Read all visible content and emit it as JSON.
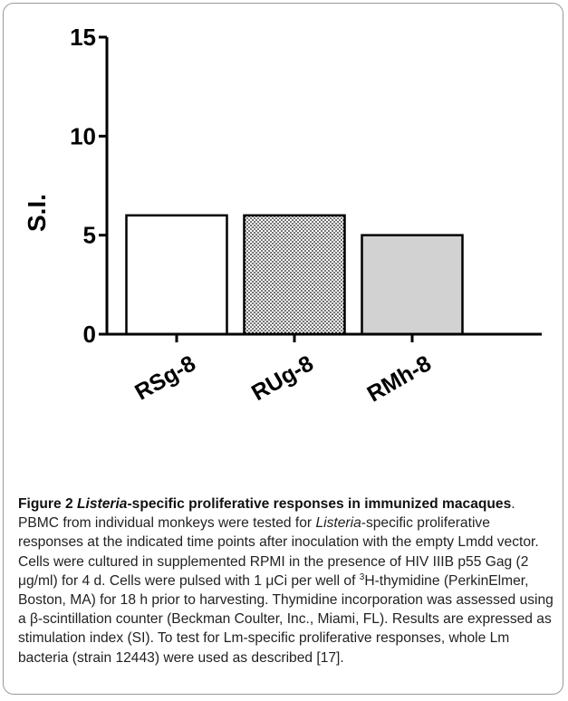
{
  "chart_data": {
    "type": "bar",
    "categories": [
      "RSg-8",
      "RUg-8",
      "RMh-8"
    ],
    "values": [
      6,
      6,
      5
    ],
    "ylabel": "S.I.",
    "ylim": [
      0,
      15
    ],
    "yticks": [
      0,
      5,
      10,
      15
    ],
    "grid": false,
    "legend": "none",
    "bar_fills": [
      "white",
      "dotted",
      "light-gray"
    ],
    "colors": {
      "axis": "#000000",
      "bar_edge": "#000000",
      "bar_gray": "#d2d2d2",
      "dot": "#000000"
    }
  },
  "caption": {
    "fig_label": "Figure 2",
    "title_italic": "Listeria",
    "title_rest": "-specific proliferative responses in immunized macaques",
    "s1": ". PBMC from individual monkeys were tested for ",
    "s1_italic": "Listeria",
    "s2": "-specific proliferative responses at the indicated time points after inoculation with the empty Lmdd vector. Cells were cultured in supplemented RPMI in the presence of HIV IIIB p55 Gag (2 μg/ml) for 4 d. Cells were pulsed with 1 μCi per well of ",
    "sup": "3",
    "s3": "H-thymidine (PerkinElmer, Boston, MA) for 18 h prior to harvesting. Thymidine incorporation was assessed using a β-scintillation counter (Beckman Coulter, Inc., Miami, FL). Results are expressed as stimulation index (SI). To test for Lm-specific proliferative responses, whole Lm bacteria (strain 12443) were used as described [17]."
  }
}
